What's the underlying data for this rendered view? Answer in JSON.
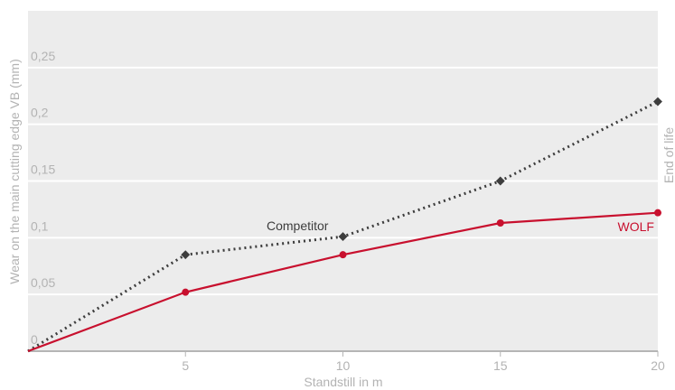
{
  "chart_data": {
    "type": "line",
    "xlabel": "Standstill in m",
    "ylabel": "Wear on the main cutting edge VB (mm)",
    "right_label": "End of life",
    "xlim": [
      0,
      20
    ],
    "ylim": [
      0,
      0.3
    ],
    "x_ticks": [
      5,
      10,
      15,
      20
    ],
    "x_tick_labels": [
      "5",
      "10",
      "15",
      "20"
    ],
    "y_ticks": [
      0,
      0.05,
      0.1,
      0.15,
      0.2,
      0.25
    ],
    "y_tick_labels": [
      "0",
      "0,05",
      "0,1",
      "0,15",
      "0,2",
      "0,25"
    ],
    "grid": true,
    "series": [
      {
        "name": "Competitor",
        "style": "dotted",
        "color": "#3d3d3d",
        "marker": "square",
        "x": [
          0,
          5,
          10,
          15,
          20
        ],
        "y": [
          0,
          0.085,
          0.101,
          0.15,
          0.22
        ]
      },
      {
        "name": "WOLF",
        "style": "solid",
        "color": "#c8102e",
        "marker": "circle",
        "x": [
          0,
          5,
          10,
          15,
          20
        ],
        "y": [
          0,
          0.052,
          0.085,
          0.113,
          0.122
        ]
      }
    ],
    "colors": {
      "background": "#ececec",
      "grid": "#ffffff",
      "axis": "#b5b5b5",
      "text": "#b3b3b3"
    }
  }
}
